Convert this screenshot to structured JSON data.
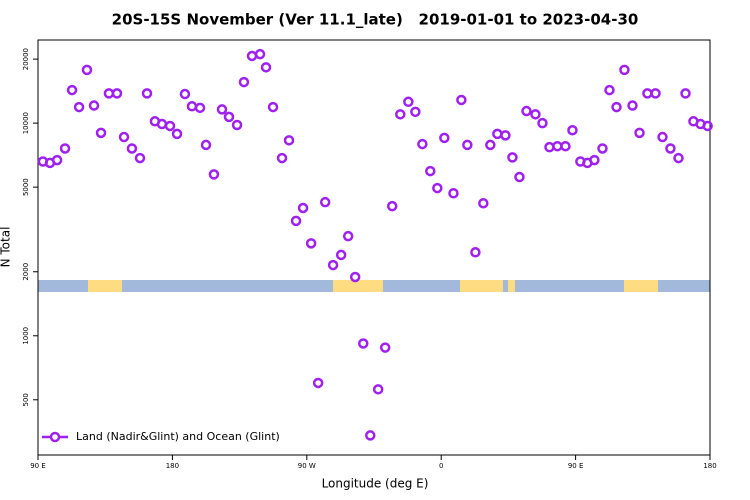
{
  "chart_data": {
    "type": "scatter",
    "title": "20S-15S November (Ver 11.1_late)   2019-01-01 to 2023-04-30",
    "x_label": "Longitude (deg E)",
    "y_label": "N Total",
    "xlim": [
      90,
      540
    ],
    "ylim": [
      275,
      24600
    ],
    "y_log": true,
    "legend": "lower left",
    "xticks": [
      {
        "value": 90,
        "label": "90 E"
      },
      180,
      {
        "value": 270,
        "label": "90 W"
      },
      {
        "value": 360,
        "label": "0"
      },
      {
        "value": 450,
        "label": "90 E"
      },
      {
        "value": 540,
        "label": "180"
      }
    ],
    "yticks": [
      500,
      1000,
      2000,
      5000,
      10000,
      20000
    ],
    "series": [
      {
        "name": "Land (Nadir&Glint) and Ocean (Glint)",
        "color": "#a020f0",
        "x": [
          93.3,
          98.0,
          102.8,
          108.1,
          112.8,
          117.5,
          122.8,
          127.5,
          132.2,
          137.5,
          142.9,
          147.6,
          152.9,
          158.3,
          163.0,
          168.3,
          173.0,
          178.4,
          183.1,
          188.4,
          193.1,
          198.5,
          202.5,
          207.8,
          213.2,
          217.9,
          223.3,
          227.9,
          233.3,
          238.7,
          242.7,
          247.4,
          253.4,
          258.1,
          262.8,
          267.5,
          272.9,
          277.6,
          282.3,
          287.6,
          293.0,
          297.7,
          302.4,
          307.8,
          312.5,
          317.8,
          322.5,
          327.2,
          332.6,
          338.0,
          342.7,
          347.4,
          352.7,
          357.4,
          362.1,
          368.2,
          373.5,
          377.5,
          382.9,
          388.2,
          392.9,
          397.6,
          403.0,
          407.7,
          412.4,
          417.1,
          423.1,
          427.8,
          432.5,
          437.8,
          443.2,
          447.9,
          453.2,
          457.9,
          462.6,
          468.0,
          472.7,
          477.4,
          482.7,
          488.1,
          492.8,
          498.1,
          503.5,
          508.2,
          513.5,
          518.9,
          523.6,
          528.9,
          533.7,
          538.4
        ],
        "values": [
          6600,
          6500,
          6700,
          7600,
          14300,
          11900,
          17800,
          12100,
          9000,
          13800,
          13800,
          8600,
          7600,
          6850,
          13800,
          10200,
          9900,
          9700,
          8900,
          13700,
          12000,
          11800,
          7900,
          5740,
          11600,
          10700,
          9800,
          15600,
          20700,
          21100,
          18300,
          11900,
          6850,
          8300,
          3470,
          3990,
          2720,
          600,
          4250,
          2150,
          2400,
          2940,
          1890,
          920,
          340,
          560,
          880,
          4070,
          11000,
          12600,
          11300,
          7970,
          5950,
          4950,
          8520,
          4680,
          12850,
          7900,
          2470,
          4200,
          7900,
          8900,
          8760,
          6900,
          5580,
          11400,
          11000,
          10000,
          7710,
          7790,
          7790,
          9260,
          6600,
          6500,
          6700,
          7600,
          14300,
          11900,
          17800,
          12100,
          9000,
          13800,
          13800,
          8600,
          7600,
          6850,
          13800,
          10200,
          9900,
          9700
        ]
      }
    ]
  }
}
